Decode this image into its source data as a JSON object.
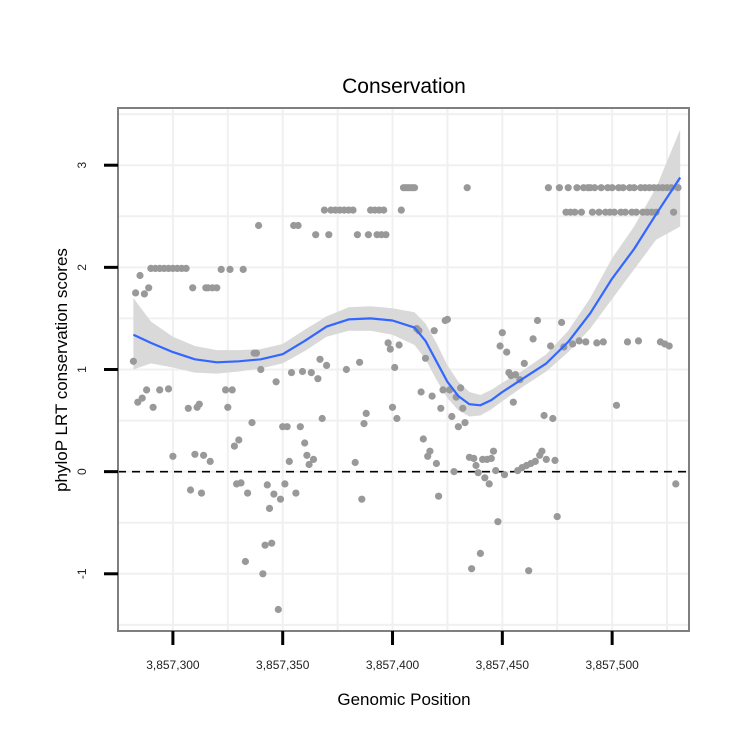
{
  "chart_data": {
    "type": "scatter",
    "title": "Conservation",
    "xlabel": "Genomic Position",
    "ylabel": "phyloP LRT conservation scores",
    "xlim": [
      3857275,
      3857535
    ],
    "ylim": [
      -1.56,
      3.56
    ],
    "x_ticks": [
      3857300,
      3857350,
      3857400,
      3857450,
      3857500
    ],
    "x_tick_labels": [
      "3,857,300",
      "3,857,350",
      "3,857,400",
      "3,857,450",
      "3,857,500"
    ],
    "y_ticks": [
      -1,
      0,
      1,
      2,
      3
    ],
    "y_tick_labels": [
      "-1",
      "0",
      "1",
      "2",
      "3"
    ],
    "grid": true,
    "reference_line": {
      "y": 0,
      "style": "dashed"
    },
    "colors": {
      "points": "#999999",
      "smooth": "#3366ff",
      "band": "#d9d9d9",
      "border": "#7f7f7f",
      "grid": "#f0f0f0"
    },
    "points": [
      {
        "x": 3857282,
        "y": 1.08
      },
      {
        "x": 3857283,
        "y": 1.75
      },
      {
        "x": 3857284,
        "y": 0.68
      },
      {
        "x": 3857285,
        "y": 1.92
      },
      {
        "x": 3857286,
        "y": 0.72
      },
      {
        "x": 3857287,
        "y": 1.74
      },
      {
        "x": 3857288,
        "y": 0.8
      },
      {
        "x": 3857289,
        "y": 1.8
      },
      {
        "x": 3857290,
        "y": 1.99
      },
      {
        "x": 3857291,
        "y": 0.63
      },
      {
        "x": 3857292,
        "y": 1.99
      },
      {
        "x": 3857294,
        "y": 1.99
      },
      {
        "x": 3857294,
        "y": 0.8
      },
      {
        "x": 3857296,
        "y": 1.99
      },
      {
        "x": 3857298,
        "y": 1.99
      },
      {
        "x": 3857298,
        "y": 0.81
      },
      {
        "x": 3857300,
        "y": 1.99
      },
      {
        "x": 3857300,
        "y": 0.15
      },
      {
        "x": 3857302,
        "y": 1.99
      },
      {
        "x": 3857304,
        "y": 1.99
      },
      {
        "x": 3857306,
        "y": 1.99
      },
      {
        "x": 3857308,
        "y": -0.18
      },
      {
        "x": 3857309,
        "y": 1.8
      },
      {
        "x": 3857310,
        "y": 0.17
      },
      {
        "x": 3857311,
        "y": 0.63
      },
      {
        "x": 3857312,
        "y": 0.66
      },
      {
        "x": 3857313,
        "y": -0.21
      },
      {
        "x": 3857314,
        "y": 0.16
      },
      {
        "x": 3857315,
        "y": 1.8
      },
      {
        "x": 3857316,
        "y": 1.8
      },
      {
        "x": 3857317,
        "y": 0.1
      },
      {
        "x": 3857318,
        "y": 1.8
      },
      {
        "x": 3857320,
        "y": 1.8
      },
      {
        "x": 3857322,
        "y": 1.98
      },
      {
        "x": 3857324,
        "y": 0.8
      },
      {
        "x": 3857325,
        "y": 0.63
      },
      {
        "x": 3857326,
        "y": 1.98
      },
      {
        "x": 3857327,
        "y": 0.8
      },
      {
        "x": 3857328,
        "y": 0.25
      },
      {
        "x": 3857329,
        "y": -0.12
      },
      {
        "x": 3857330,
        "y": 0.31
      },
      {
        "x": 3857331,
        "y": -0.11
      },
      {
        "x": 3857332,
        "y": 1.98
      },
      {
        "x": 3857333,
        "y": -0.88
      },
      {
        "x": 3857334,
        "y": -0.21
      },
      {
        "x": 3857336,
        "y": 0.48
      },
      {
        "x": 3857337,
        "y": 1.16
      },
      {
        "x": 3857338,
        "y": 1.16
      },
      {
        "x": 3857339,
        "y": 2.41
      },
      {
        "x": 3857340,
        "y": 1.0
      },
      {
        "x": 3857341,
        "y": -1.0
      },
      {
        "x": 3857342,
        "y": -0.72
      },
      {
        "x": 3857343,
        "y": -0.13
      },
      {
        "x": 3857344,
        "y": -0.36
      },
      {
        "x": 3857345,
        "y": -0.7
      },
      {
        "x": 3857346,
        "y": -0.22
      },
      {
        "x": 3857347,
        "y": 0.88
      },
      {
        "x": 3857348,
        "y": -1.35
      },
      {
        "x": 3857349,
        "y": -0.27
      },
      {
        "x": 3857350,
        "y": 0.44
      },
      {
        "x": 3857351,
        "y": -0.12
      },
      {
        "x": 3857352,
        "y": 0.44
      },
      {
        "x": 3857353,
        "y": 0.1
      },
      {
        "x": 3857354,
        "y": 0.97
      },
      {
        "x": 3857355,
        "y": 2.41
      },
      {
        "x": 3857356,
        "y": -0.21
      },
      {
        "x": 3857357,
        "y": 2.41
      },
      {
        "x": 3857358,
        "y": 0.44
      },
      {
        "x": 3857359,
        "y": 0.98
      },
      {
        "x": 3857360,
        "y": 0.28
      },
      {
        "x": 3857361,
        "y": 0.16
      },
      {
        "x": 3857362,
        "y": 0.07
      },
      {
        "x": 3857363,
        "y": 0.97
      },
      {
        "x": 3857364,
        "y": 0.12
      },
      {
        "x": 3857365,
        "y": 2.32
      },
      {
        "x": 3857366,
        "y": 0.91
      },
      {
        "x": 3857367,
        "y": 1.1
      },
      {
        "x": 3857368,
        "y": 0.52
      },
      {
        "x": 3857369,
        "y": 2.56
      },
      {
        "x": 3857370,
        "y": 1.04
      },
      {
        "x": 3857371,
        "y": 2.32
      },
      {
        "x": 3857372,
        "y": 2.56
      },
      {
        "x": 3857374,
        "y": 2.56
      },
      {
        "x": 3857376,
        "y": 2.56
      },
      {
        "x": 3857378,
        "y": 2.56
      },
      {
        "x": 3857379,
        "y": 1.0
      },
      {
        "x": 3857380,
        "y": 2.56
      },
      {
        "x": 3857382,
        "y": 2.56
      },
      {
        "x": 3857383,
        "y": 0.09
      },
      {
        "x": 3857384,
        "y": 2.32
      },
      {
        "x": 3857385,
        "y": 1.07
      },
      {
        "x": 3857386,
        "y": -0.27
      },
      {
        "x": 3857387,
        "y": 0.47
      },
      {
        "x": 3857388,
        "y": 0.57
      },
      {
        "x": 3857389,
        "y": 2.32
      },
      {
        "x": 3857390,
        "y": 2.56
      },
      {
        "x": 3857392,
        "y": 2.56
      },
      {
        "x": 3857393,
        "y": 2.32
      },
      {
        "x": 3857394,
        "y": 2.56
      },
      {
        "x": 3857395,
        "y": 2.32
      },
      {
        "x": 3857396,
        "y": 2.56
      },
      {
        "x": 3857397,
        "y": 2.32
      },
      {
        "x": 3857398,
        "y": 1.26
      },
      {
        "x": 3857399,
        "y": 1.2
      },
      {
        "x": 3857400,
        "y": 0.63
      },
      {
        "x": 3857401,
        "y": 1.02
      },
      {
        "x": 3857402,
        "y": 0.52
      },
      {
        "x": 3857403,
        "y": 1.24
      },
      {
        "x": 3857404,
        "y": 2.56
      },
      {
        "x": 3857405,
        "y": 2.78
      },
      {
        "x": 3857406,
        "y": 2.78
      },
      {
        "x": 3857407,
        "y": 2.78
      },
      {
        "x": 3857408,
        "y": 2.78
      },
      {
        "x": 3857409,
        "y": 2.78
      },
      {
        "x": 3857410,
        "y": 2.78
      },
      {
        "x": 3857411,
        "y": 1.4
      },
      {
        "x": 3857412,
        "y": 1.38
      },
      {
        "x": 3857413,
        "y": 0.78
      },
      {
        "x": 3857414,
        "y": 0.32
      },
      {
        "x": 3857415,
        "y": 1.11
      },
      {
        "x": 3857416,
        "y": 0.15
      },
      {
        "x": 3857417,
        "y": 0.2
      },
      {
        "x": 3857418,
        "y": 0.74
      },
      {
        "x": 3857419,
        "y": 1.38
      },
      {
        "x": 3857420,
        "y": 0.08
      },
      {
        "x": 3857421,
        "y": -0.24
      },
      {
        "x": 3857422,
        "y": 0.62
      },
      {
        "x": 3857423,
        "y": 0.8
      },
      {
        "x": 3857424,
        "y": 1.48
      },
      {
        "x": 3857425,
        "y": 1.49
      },
      {
        "x": 3857426,
        "y": 0.8
      },
      {
        "x": 3857427,
        "y": 0.54
      },
      {
        "x": 3857428,
        "y": 0.0
      },
      {
        "x": 3857429,
        "y": 0.73
      },
      {
        "x": 3857430,
        "y": 0.44
      },
      {
        "x": 3857431,
        "y": 0.82
      },
      {
        "x": 3857432,
        "y": 0.62
      },
      {
        "x": 3857433,
        "y": 0.48
      },
      {
        "x": 3857434,
        "y": 2.78
      },
      {
        "x": 3857435,
        "y": 0.14
      },
      {
        "x": 3857436,
        "y": -0.95
      },
      {
        "x": 3857437,
        "y": 0.13
      },
      {
        "x": 3857438,
        "y": 0.06
      },
      {
        "x": 3857439,
        "y": -0.01
      },
      {
        "x": 3857440,
        "y": -0.8
      },
      {
        "x": 3857441,
        "y": 0.12
      },
      {
        "x": 3857442,
        "y": -0.06
      },
      {
        "x": 3857443,
        "y": 0.12
      },
      {
        "x": 3857444,
        "y": -0.12
      },
      {
        "x": 3857445,
        "y": 0.13
      },
      {
        "x": 3857446,
        "y": 0.2
      },
      {
        "x": 3857447,
        "y": 0.01
      },
      {
        "x": 3857448,
        "y": -0.49
      },
      {
        "x": 3857449,
        "y": 1.23
      },
      {
        "x": 3857450,
        "y": 1.36
      },
      {
        "x": 3857451,
        "y": -0.03
      },
      {
        "x": 3857452,
        "y": 1.17
      },
      {
        "x": 3857453,
        "y": 0.97
      },
      {
        "x": 3857454,
        "y": 0.94
      },
      {
        "x": 3857455,
        "y": 0.68
      },
      {
        "x": 3857456,
        "y": 0.95
      },
      {
        "x": 3857457,
        "y": 0.01
      },
      {
        "x": 3857458,
        "y": 0.9
      },
      {
        "x": 3857459,
        "y": 0.04
      },
      {
        "x": 3857460,
        "y": 1.06
      },
      {
        "x": 3857461,
        "y": 0.06
      },
      {
        "x": 3857462,
        "y": -0.97
      },
      {
        "x": 3857463,
        "y": 0.08
      },
      {
        "x": 3857464,
        "y": 1.3
      },
      {
        "x": 3857465,
        "y": 0.1
      },
      {
        "x": 3857466,
        "y": 1.48
      },
      {
        "x": 3857467,
        "y": 0.16
      },
      {
        "x": 3857468,
        "y": 0.2
      },
      {
        "x": 3857469,
        "y": 0.55
      },
      {
        "x": 3857470,
        "y": 0.12
      },
      {
        "x": 3857471,
        "y": 2.78
      },
      {
        "x": 3857472,
        "y": 1.23
      },
      {
        "x": 3857473,
        "y": 0.52
      },
      {
        "x": 3857474,
        "y": 0.11
      },
      {
        "x": 3857475,
        "y": -0.44
      },
      {
        "x": 3857476,
        "y": 2.78
      },
      {
        "x": 3857477,
        "y": 1.46
      },
      {
        "x": 3857478,
        "y": 1.22
      },
      {
        "x": 3857479,
        "y": 2.54
      },
      {
        "x": 3857480,
        "y": 2.78
      },
      {
        "x": 3857481,
        "y": 2.54
      },
      {
        "x": 3857482,
        "y": 1.25
      },
      {
        "x": 3857483,
        "y": 2.54
      },
      {
        "x": 3857484,
        "y": 2.78
      },
      {
        "x": 3857485,
        "y": 1.28
      },
      {
        "x": 3857486,
        "y": 2.54
      },
      {
        "x": 3857487,
        "y": 2.78
      },
      {
        "x": 3857488,
        "y": 1.27
      },
      {
        "x": 3857489,
        "y": 2.78
      },
      {
        "x": 3857490,
        "y": 2.78
      },
      {
        "x": 3857491,
        "y": 2.54
      },
      {
        "x": 3857492,
        "y": 2.78
      },
      {
        "x": 3857493,
        "y": 1.26
      },
      {
        "x": 3857494,
        "y": 2.54
      },
      {
        "x": 3857495,
        "y": 2.78
      },
      {
        "x": 3857496,
        "y": 1.27
      },
      {
        "x": 3857497,
        "y": 2.54
      },
      {
        "x": 3857498,
        "y": 2.78
      },
      {
        "x": 3857499,
        "y": 2.54
      },
      {
        "x": 3857500,
        "y": 2.78
      },
      {
        "x": 3857501,
        "y": 2.54
      },
      {
        "x": 3857502,
        "y": 0.65
      },
      {
        "x": 3857503,
        "y": 2.78
      },
      {
        "x": 3857504,
        "y": 2.54
      },
      {
        "x": 3857505,
        "y": 2.78
      },
      {
        "x": 3857506,
        "y": 2.54
      },
      {
        "x": 3857507,
        "y": 1.27
      },
      {
        "x": 3857508,
        "y": 2.78
      },
      {
        "x": 3857509,
        "y": 2.54
      },
      {
        "x": 3857510,
        "y": 2.78
      },
      {
        "x": 3857511,
        "y": 2.54
      },
      {
        "x": 3857512,
        "y": 1.28
      },
      {
        "x": 3857513,
        "y": 2.78
      },
      {
        "x": 3857514,
        "y": 2.54
      },
      {
        "x": 3857515,
        "y": 2.78
      },
      {
        "x": 3857516,
        "y": 2.54
      },
      {
        "x": 3857517,
        "y": 2.78
      },
      {
        "x": 3857518,
        "y": 2.54
      },
      {
        "x": 3857519,
        "y": 2.78
      },
      {
        "x": 3857520,
        "y": 2.54
      },
      {
        "x": 3857521,
        "y": 2.78
      },
      {
        "x": 3857522,
        "y": 1.27
      },
      {
        "x": 3857523,
        "y": 2.78
      },
      {
        "x": 3857524,
        "y": 1.25
      },
      {
        "x": 3857525,
        "y": 2.78
      },
      {
        "x": 3857526,
        "y": 1.23
      },
      {
        "x": 3857527,
        "y": 2.78
      },
      {
        "x": 3857528,
        "y": 2.54
      },
      {
        "x": 3857529,
        "y": -0.12
      },
      {
        "x": 3857530,
        "y": 2.78
      },
      {
        "x": 3857307,
        "y": 0.62
      }
    ],
    "smooth": {
      "x": [
        3857282,
        3857290,
        3857300,
        3857310,
        3857320,
        3857330,
        3857340,
        3857350,
        3857360,
        3857370,
        3857380,
        3857390,
        3857400,
        3857410,
        3857415,
        3857420,
        3857425,
        3857430,
        3857435,
        3857440,
        3857445,
        3857450,
        3857460,
        3857470,
        3857480,
        3857490,
        3857500,
        3857510,
        3857520,
        3857531
      ],
      "y": [
        1.34,
        1.26,
        1.17,
        1.1,
        1.07,
        1.08,
        1.1,
        1.15,
        1.28,
        1.42,
        1.49,
        1.5,
        1.48,
        1.41,
        1.28,
        1.08,
        0.88,
        0.74,
        0.66,
        0.65,
        0.7,
        0.78,
        0.92,
        1.06,
        1.27,
        1.55,
        1.89,
        2.18,
        2.52,
        2.88
      ],
      "lower": [
        1.0,
        1.06,
        1.02,
        0.97,
        0.96,
        0.98,
        1.01,
        1.06,
        1.18,
        1.32,
        1.38,
        1.38,
        1.34,
        1.24,
        1.1,
        0.9,
        0.72,
        0.6,
        0.54,
        0.55,
        0.61,
        0.69,
        0.84,
        0.98,
        1.17,
        1.4,
        1.69,
        1.98,
        2.27,
        2.4
      ],
      "upper": [
        1.7,
        1.47,
        1.32,
        1.23,
        1.19,
        1.19,
        1.2,
        1.25,
        1.39,
        1.52,
        1.61,
        1.62,
        1.6,
        1.56,
        1.45,
        1.26,
        1.04,
        0.88,
        0.78,
        0.75,
        0.8,
        0.87,
        1.0,
        1.15,
        1.38,
        1.7,
        2.09,
        2.4,
        2.78,
        3.35
      ]
    }
  }
}
